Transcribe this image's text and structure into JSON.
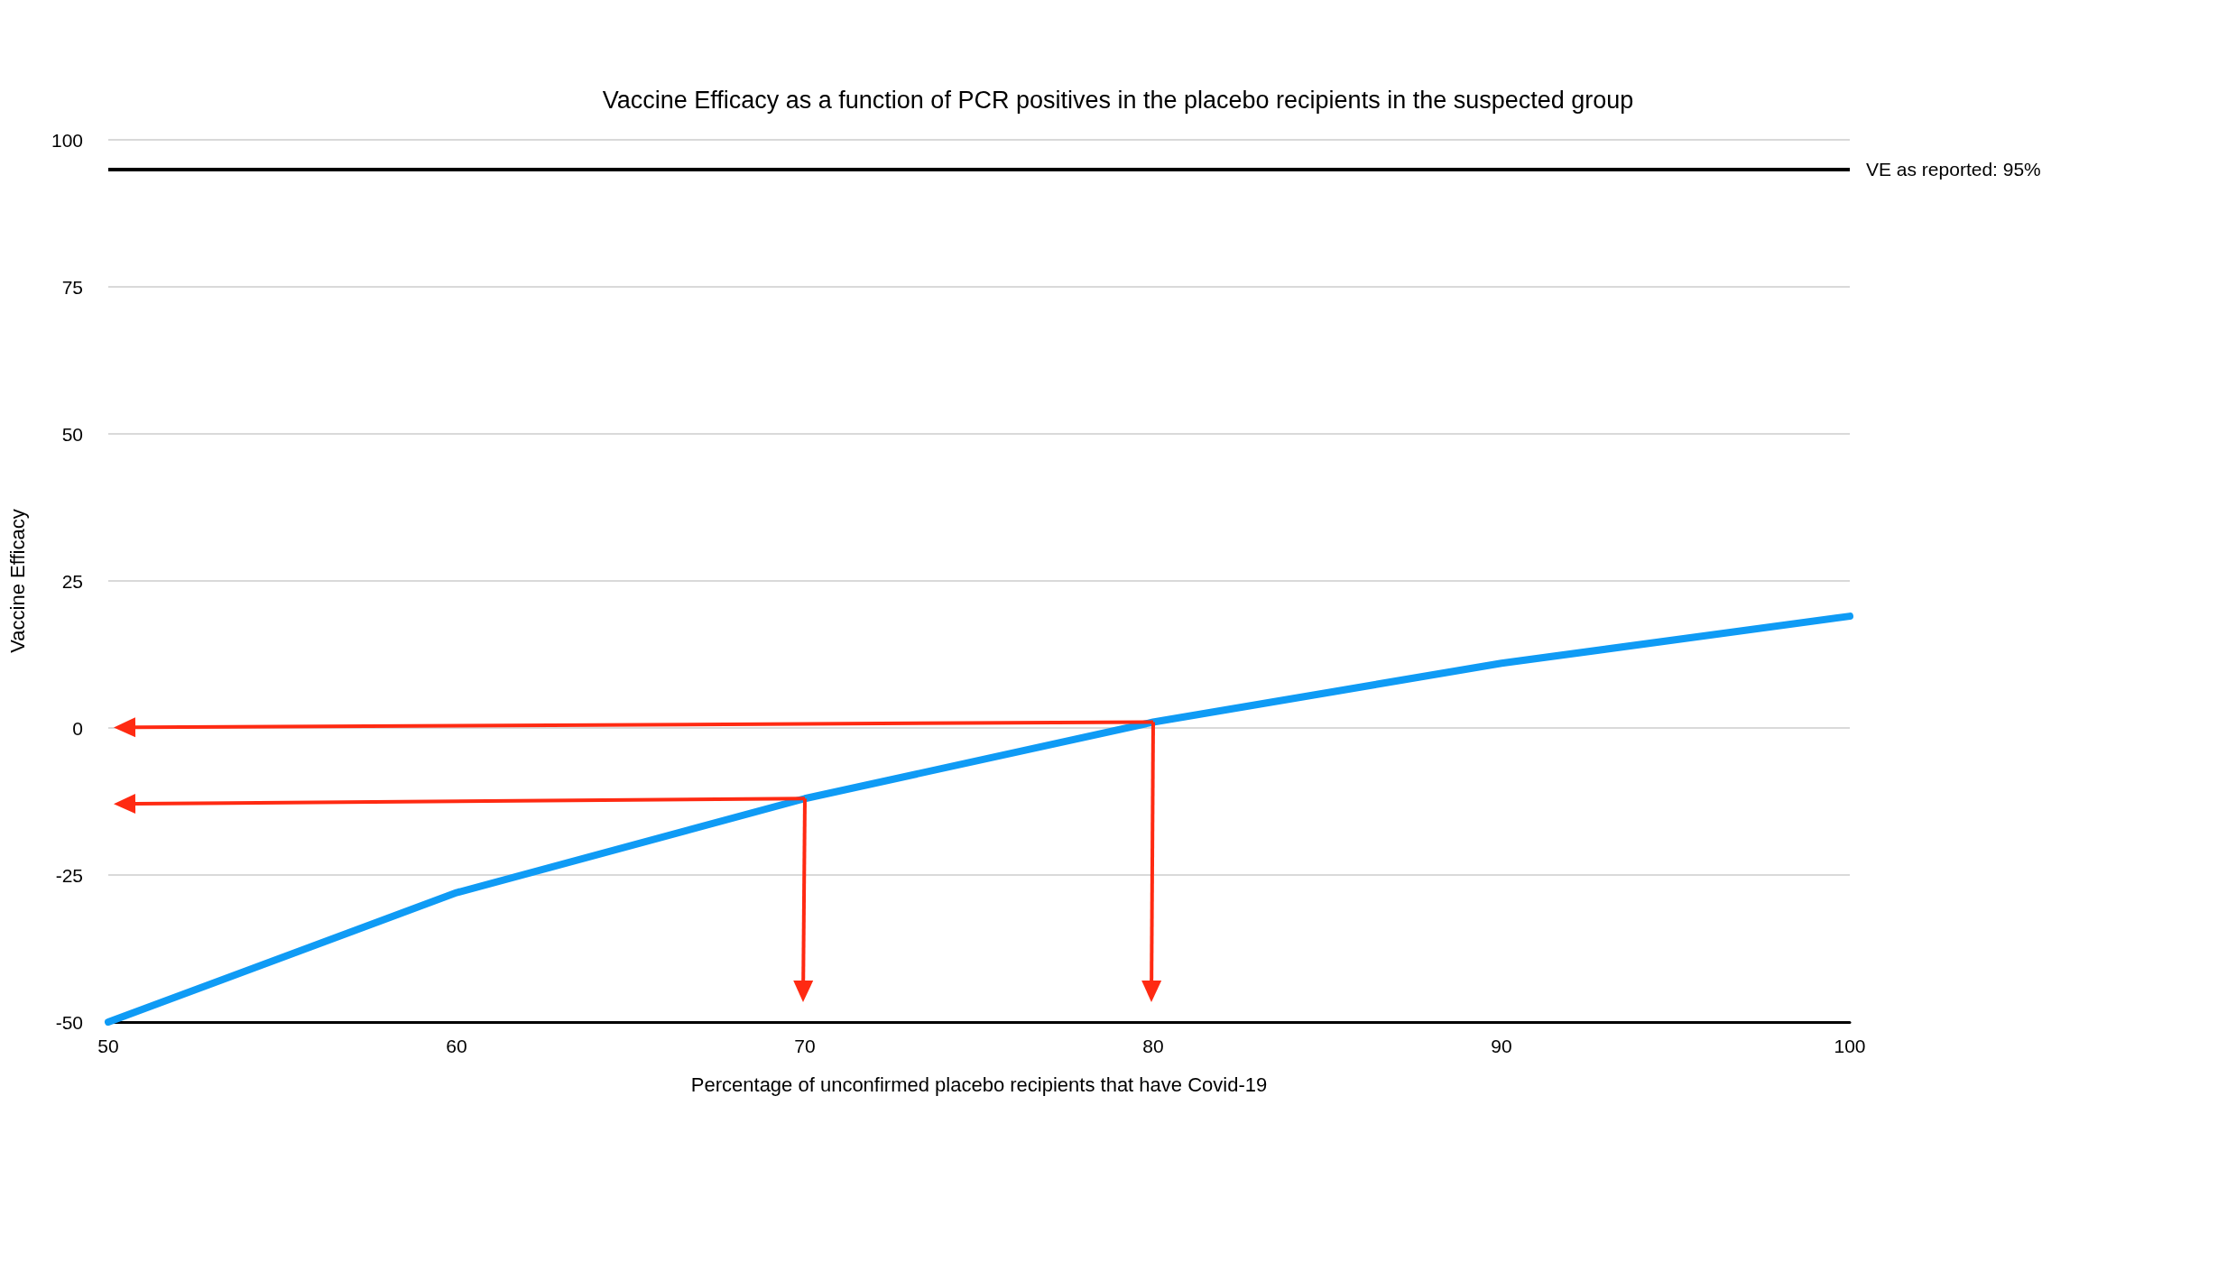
{
  "chart_data": {
    "type": "line",
    "title": "Vaccine Efficacy as a function of PCR positives in the placebo recipients in the suspected group",
    "xlabel": "Percentage of unconfirmed placebo recipients that have Covid-19",
    "ylabel": "Vaccine Efficacy",
    "x": [
      50,
      60,
      70,
      80,
      90,
      100
    ],
    "series": [
      {
        "color": "#0f9bf5",
        "values": [
          -50,
          -28,
          -12,
          1,
          11,
          19
        ]
      }
    ],
    "xlim": [
      50,
      100
    ],
    "xticks": [
      50,
      60,
      70,
      80,
      90,
      100
    ],
    "ylim": [
      -50,
      100
    ],
    "yticks": [
      -50,
      -25,
      0,
      25,
      50,
      75,
      100
    ],
    "ref_lines": [
      {
        "axis": "y",
        "value": 95,
        "label": "VE as reported: 95%",
        "color": "#000000"
      }
    ],
    "grid": "y",
    "line_style": "solid"
  }
}
